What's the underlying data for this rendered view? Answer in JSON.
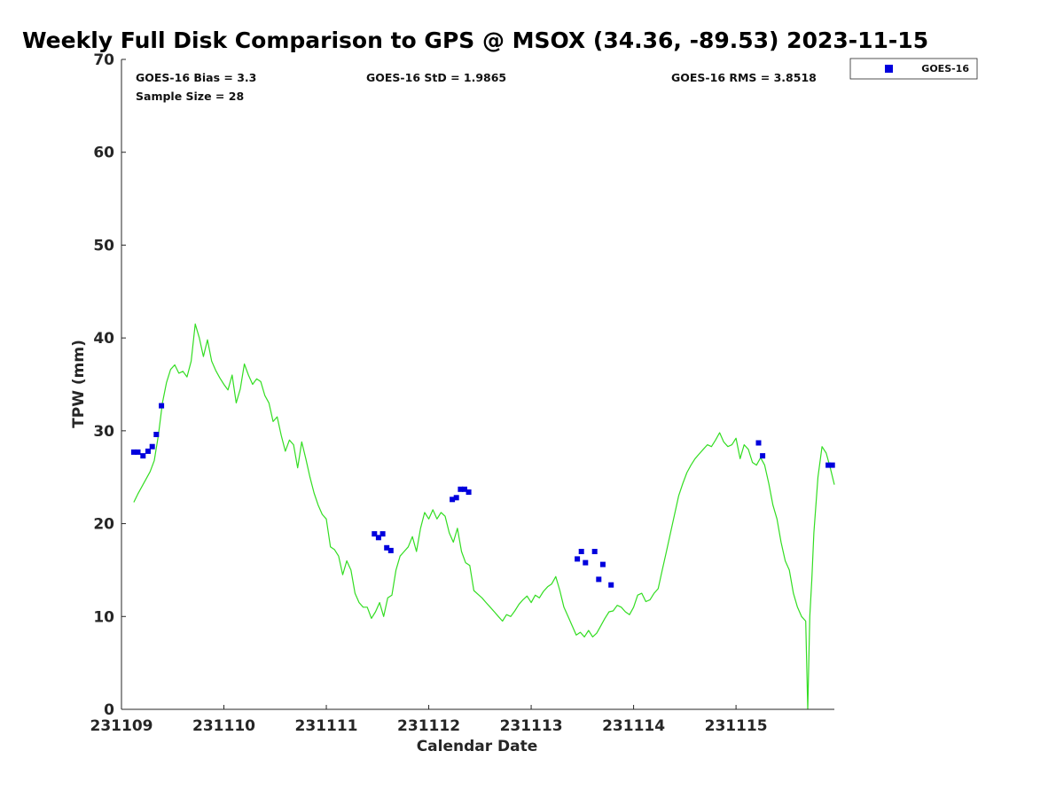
{
  "chart_data": {
    "type": "scatter",
    "title": "Weekly Full Disk Comparison to GPS @ MSOX (34.36, -89.53) 2023-11-15",
    "xlabel": "Calendar Date",
    "ylabel": "TPW (mm)",
    "xlim": [
      0,
      6.96
    ],
    "ylim": [
      0,
      70
    ],
    "x_ticks": [
      {
        "value": 0,
        "label": "231109"
      },
      {
        "value": 1,
        "label": "231110"
      },
      {
        "value": 2,
        "label": "231111"
      },
      {
        "value": 3,
        "label": "231112"
      },
      {
        "value": 4,
        "label": "231113"
      },
      {
        "value": 5,
        "label": "231114"
      },
      {
        "value": 6,
        "label": "231115"
      }
    ],
    "y_ticks": [
      0,
      10,
      20,
      30,
      40,
      50,
      60,
      70
    ],
    "grid": false,
    "legend_position": "outside top-right",
    "stats": {
      "bias": "GOES-16 Bias = 3.3",
      "sample_size": "Sample Size = 28",
      "std": "GOES-16 StD = 1.9865",
      "rms": "GOES-16 RMS = 3.8518"
    },
    "series": [
      {
        "name": "GOES-16",
        "kind": "scatter",
        "marker": "square",
        "color": "#0000dd",
        "x": [
          0.12,
          0.16,
          0.21,
          0.26,
          0.3,
          0.34,
          0.39,
          2.47,
          2.51,
          2.55,
          2.59,
          2.63,
          3.23,
          3.27,
          3.31,
          3.35,
          3.39,
          4.45,
          4.49,
          4.53,
          4.62,
          4.66,
          4.7,
          4.78,
          6.22,
          6.26,
          6.9,
          6.94
        ],
        "y": [
          27.7,
          27.7,
          27.3,
          27.8,
          28.3,
          29.6,
          32.7,
          18.9,
          18.5,
          18.9,
          17.4,
          17.1,
          22.6,
          22.8,
          23.7,
          23.7,
          23.4,
          16.2,
          17.0,
          15.8,
          17.0,
          14.0,
          15.6,
          13.4,
          28.7,
          27.3,
          26.3,
          26.3
        ]
      },
      {
        "kind": "line",
        "color": "#33dd22",
        "x": [
          0.12,
          0.16,
          0.2,
          0.24,
          0.28,
          0.32,
          0.36,
          0.4,
          0.44,
          0.48,
          0.52,
          0.56,
          0.6,
          0.64,
          0.68,
          0.72,
          0.76,
          0.8,
          0.84,
          0.88,
          0.92,
          0.96,
          1.0,
          1.04,
          1.08,
          1.12,
          1.16,
          1.2,
          1.24,
          1.28,
          1.32,
          1.36,
          1.4,
          1.44,
          1.48,
          1.52,
          1.56,
          1.6,
          1.64,
          1.68,
          1.72,
          1.76,
          1.8,
          1.84,
          1.88,
          1.92,
          1.96,
          2.0,
          2.04,
          2.08,
          2.12,
          2.16,
          2.2,
          2.24,
          2.28,
          2.32,
          2.36,
          2.4,
          2.44,
          2.48,
          2.52,
          2.56,
          2.6,
          2.64,
          2.68,
          2.72,
          2.76,
          2.8,
          2.84,
          2.88,
          2.92,
          2.96,
          3.0,
          3.04,
          3.08,
          3.12,
          3.16,
          3.2,
          3.24,
          3.28,
          3.32,
          3.36,
          3.4,
          3.44,
          3.48,
          3.52,
          3.56,
          3.6,
          3.64,
          3.68,
          3.72,
          3.76,
          3.8,
          3.84,
          3.88,
          3.92,
          3.96,
          4.0,
          4.04,
          4.08,
          4.12,
          4.16,
          4.2,
          4.24,
          4.28,
          4.32,
          4.36,
          4.4,
          4.44,
          4.48,
          4.52,
          4.56,
          4.6,
          4.64,
          4.68,
          4.72,
          4.76,
          4.8,
          4.84,
          4.88,
          4.92,
          4.96,
          5.0,
          5.04,
          5.08,
          5.12,
          5.16,
          5.2,
          5.24,
          5.28,
          5.32,
          5.36,
          5.4,
          5.44,
          5.48,
          5.52,
          5.56,
          5.6,
          5.64,
          5.68,
          5.72,
          5.76,
          5.8,
          5.84,
          5.88,
          5.92,
          5.96,
          6.0,
          6.04,
          6.08,
          6.12,
          6.16,
          6.2,
          6.24,
          6.28,
          6.32,
          6.36,
          6.4,
          6.44,
          6.48,
          6.52,
          6.56,
          6.6,
          6.64,
          6.68,
          6.7,
          6.72,
          6.74,
          6.76,
          6.8,
          6.84,
          6.88,
          6.92,
          6.96
        ],
        "y": [
          22.3,
          23.2,
          24.0,
          24.8,
          25.6,
          26.8,
          29.5,
          33.0,
          35.2,
          36.6,
          37.1,
          36.2,
          36.4,
          35.8,
          37.5,
          41.5,
          40.0,
          38.0,
          39.8,
          37.5,
          36.5,
          35.7,
          35.0,
          34.4,
          36.0,
          33.0,
          34.5,
          37.2,
          36.0,
          35.0,
          35.6,
          35.3,
          33.8,
          33.0,
          31.0,
          31.5,
          29.5,
          27.8,
          29.0,
          28.5,
          26.0,
          28.8,
          27.0,
          25.0,
          23.3,
          22.0,
          21.0,
          20.5,
          17.5,
          17.2,
          16.5,
          14.5,
          16.0,
          15.0,
          12.5,
          11.5,
          11.0,
          11.0,
          9.8,
          10.5,
          11.5,
          10.0,
          12.0,
          12.3,
          15.0,
          16.5,
          17.0,
          17.5,
          18.6,
          17.0,
          19.5,
          21.2,
          20.5,
          21.5,
          20.5,
          21.2,
          20.8,
          19.0,
          18.0,
          19.5,
          17.0,
          15.8,
          15.5,
          12.8,
          12.4,
          12.0,
          11.5,
          11.0,
          10.5,
          10.0,
          9.5,
          10.2,
          10.0,
          10.6,
          11.3,
          11.8,
          12.2,
          11.5,
          12.3,
          12.0,
          12.7,
          13.2,
          13.5,
          14.3,
          12.8,
          11.0,
          10.0,
          9.0,
          8.0,
          8.3,
          7.8,
          8.5,
          7.8,
          8.2,
          9.0,
          9.8,
          10.5,
          10.6,
          11.2,
          11.0,
          10.5,
          10.2,
          11.0,
          12.3,
          12.5,
          11.6,
          11.8,
          12.5,
          13.0,
          15.0,
          17.0,
          19.0,
          21.0,
          23.0,
          24.3,
          25.5,
          26.3,
          27.0,
          27.5,
          28.0,
          28.5,
          28.3,
          29.0,
          29.8,
          28.8,
          28.3,
          28.5,
          29.2,
          27.0,
          28.5,
          28.0,
          26.6,
          26.3,
          27.1,
          26.3,
          24.3,
          22.0,
          20.5,
          18.0,
          16.0,
          15.0,
          12.5,
          11.0,
          10.0,
          9.5,
          0.0,
          10.0,
          14.0,
          19.0,
          25.0,
          28.3,
          27.6,
          26.0,
          24.2
        ]
      }
    ]
  }
}
